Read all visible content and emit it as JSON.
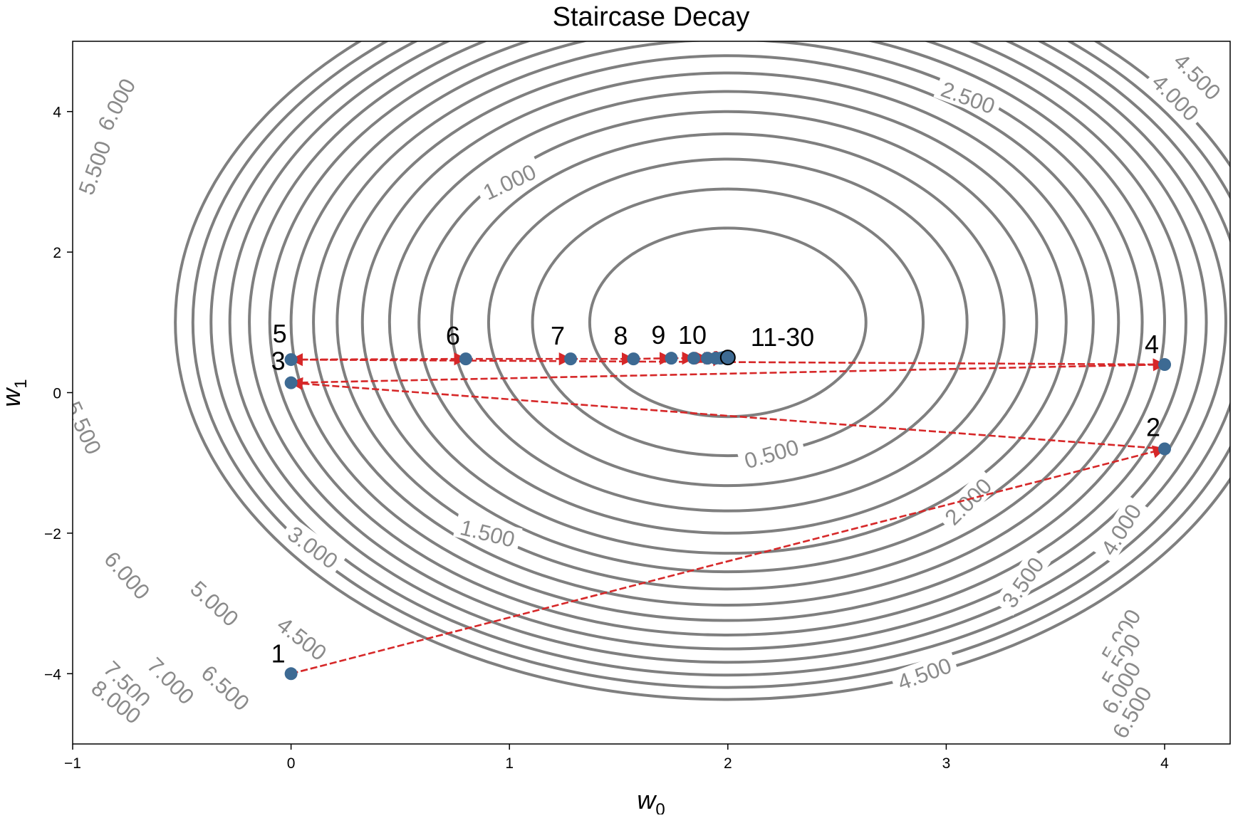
{
  "chart_data": {
    "type": "contour",
    "title": "Staircase Decay",
    "xlabel": "w",
    "xlabel_sub": "0",
    "ylabel": "w",
    "ylabel_sub": "1",
    "xlim": [
      -1,
      4.3
    ],
    "ylim": [
      -5,
      5
    ],
    "xticks": [
      -1,
      0,
      1,
      2,
      3,
      4
    ],
    "yticks": [
      -4,
      -2,
      0,
      2,
      4
    ],
    "contour_center": [
      2,
      1
    ],
    "contour_levels": [
      0.5,
      1.0,
      1.5,
      2.0,
      2.5,
      3.0,
      3.5,
      4.0,
      4.5,
      5.0,
      5.5,
      6.0,
      6.5,
      7.0,
      7.5,
      8.0
    ],
    "contour_labels": [
      {
        "text": "0.500",
        "x": 2.2,
        "y": -0.87,
        "angle": -16
      },
      {
        "text": "1.000",
        "x": 1.0,
        "y": 3.0,
        "angle": -25
      },
      {
        "text": "1.500",
        "x": 0.9,
        "y": -2.0,
        "angle": 14
      },
      {
        "text": "2.000",
        "x": 3.1,
        "y": -1.55,
        "angle": -45
      },
      {
        "text": "2.500",
        "x": 3.1,
        "y": 4.2,
        "angle": 20
      },
      {
        "text": "3.000",
        "x": 0.1,
        "y": -2.2,
        "angle": 36
      },
      {
        "text": "3.500",
        "x": 3.35,
        "y": -2.7,
        "angle": -55
      },
      {
        "text": "4.000",
        "x": 3.8,
        "y": -1.95,
        "angle": -58
      },
      {
        "text": "4.000",
        "x": 4.05,
        "y": 4.2,
        "angle": 45
      },
      {
        "text": "4.500",
        "x": 4.15,
        "y": 4.5,
        "angle": 45
      },
      {
        "text": "4.500",
        "x": 0.05,
        "y": -3.5,
        "angle": 38
      },
      {
        "text": "4.500",
        "x": 2.9,
        "y": -4.0,
        "angle": -20
      },
      {
        "text": "5.000",
        "x": -0.35,
        "y": -3.0,
        "angle": 42
      },
      {
        "text": "5.000",
        "x": 3.8,
        "y": -3.45,
        "angle": -60
      },
      {
        "text": "5.500",
        "x": -0.9,
        "y": 3.2,
        "angle": -70
      },
      {
        "text": "5.500",
        "x": -0.95,
        "y": -0.5,
        "angle": 65
      },
      {
        "text": "5.500",
        "x": 3.8,
        "y": -3.8,
        "angle": -60
      },
      {
        "text": "6.000",
        "x": -0.8,
        "y": 4.1,
        "angle": -62
      },
      {
        "text": "6.000",
        "x": -0.75,
        "y": -2.6,
        "angle": 48
      },
      {
        "text": "6.000",
        "x": 3.8,
        "y": -4.2,
        "angle": -60
      },
      {
        "text": "6.500",
        "x": -0.3,
        "y": -4.2,
        "angle": 42
      },
      {
        "text": "6.500",
        "x": 3.85,
        "y": -4.55,
        "angle": -60
      },
      {
        "text": "7.000",
        "x": -0.55,
        "y": -4.1,
        "angle": 45
      },
      {
        "text": "7.500",
        "x": -0.75,
        "y": -4.15,
        "angle": 45
      },
      {
        "text": "8.000",
        "x": -0.8,
        "y": -4.4,
        "angle": 38
      }
    ],
    "path": {
      "x": [
        0,
        4,
        0,
        4,
        0,
        0.8,
        1.28,
        1.568,
        1.741,
        1.844,
        1.906,
        1.944,
        1.966,
        1.98,
        1.988,
        1.993,
        1.996,
        1.997,
        1.998,
        1.999,
        1.999,
        2.0,
        2.0,
        2.0,
        2.0,
        2.0,
        2.0,
        2.0,
        2.0,
        2.0
      ],
      "y": [
        -4,
        -0.8,
        0.14,
        0.4,
        0.47,
        0.48,
        0.48,
        0.48,
        0.49,
        0.49,
        0.49,
        0.49,
        0.49,
        0.5,
        0.5,
        0.5,
        0.5,
        0.5,
        0.5,
        0.5,
        0.5,
        0.5,
        0.5,
        0.5,
        0.5,
        0.5,
        0.5,
        0.5,
        0.5,
        0.5
      ]
    },
    "step_labels": [
      {
        "text": "1",
        "step": 1
      },
      {
        "text": "2",
        "step": 2
      },
      {
        "text": "3",
        "step": 3
      },
      {
        "text": "4",
        "step": 4
      },
      {
        "text": "5",
        "step": 5
      },
      {
        "text": "6",
        "step": 6
      },
      {
        "text": "7",
        "step": 7
      },
      {
        "text": "8",
        "step": 8
      },
      {
        "text": "9",
        "step": 9
      },
      {
        "text": "10",
        "step": 10
      },
      {
        "text": "11-30",
        "step": 30
      }
    ],
    "colors": {
      "contour": "#7f7f7f",
      "contour_label": "#8a8a8a",
      "path": "#d62728",
      "point": "#3d6a93"
    }
  }
}
